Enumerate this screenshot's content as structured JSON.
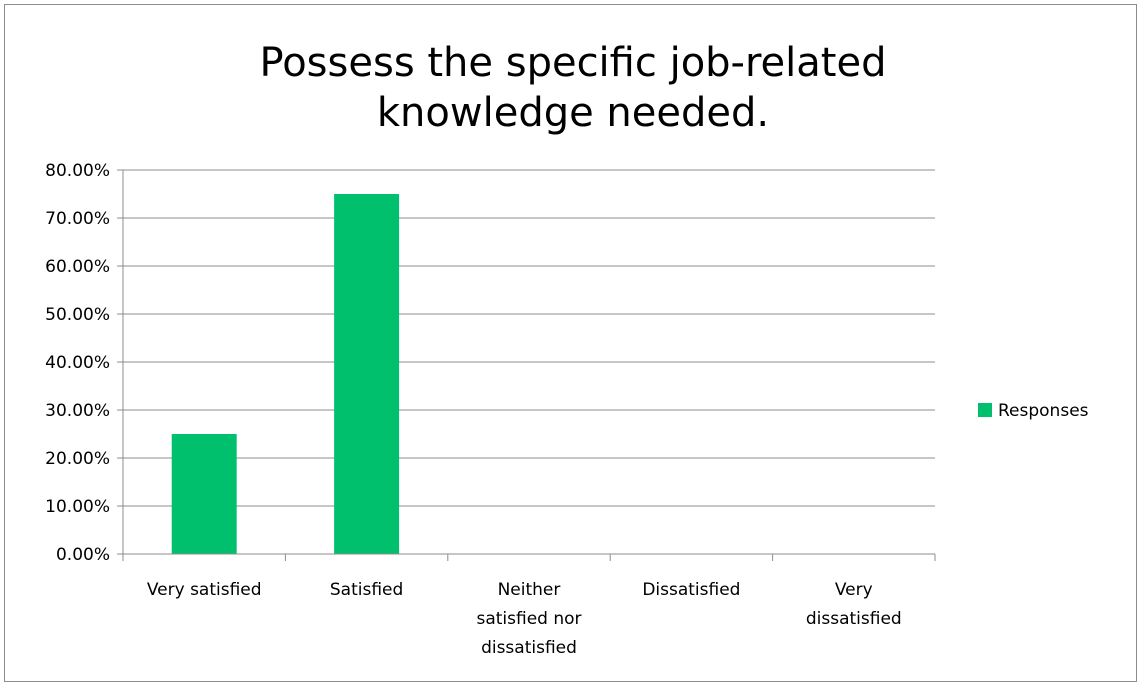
{
  "chart_data": {
    "type": "bar",
    "title_lines": [
      "Possess the specific job-related",
      "knowledge needed."
    ],
    "categories": [
      [
        "Very satisfied"
      ],
      [
        "Satisfied"
      ],
      [
        "Neither",
        "satisfied nor",
        "dissatisfied"
      ],
      [
        "Dissatisfied"
      ],
      [
        "Very",
        "dissatisfied"
      ]
    ],
    "series": [
      {
        "name": "Responses",
        "values": [
          0.25,
          0.75,
          0,
          0,
          0
        ],
        "color": "#00c06e"
      }
    ],
    "ylim": [
      0,
      0.8
    ],
    "yticks": [
      0,
      0.1,
      0.2,
      0.3,
      0.4,
      0.5,
      0.6,
      0.7,
      0.8
    ],
    "ytick_format": "percent_2dp",
    "ytick_labels": [
      "0.00%",
      "10.00%",
      "20.00%",
      "30.00%",
      "40.00%",
      "50.00%",
      "60.00%",
      "70.00%",
      "80.00%"
    ],
    "grid": true,
    "legend": "right",
    "xlabel": "",
    "ylabel": "",
    "colors": {
      "gridline": "#8c8c8c",
      "axis": "#8c8c8c",
      "bar": "#00c06e"
    }
  }
}
